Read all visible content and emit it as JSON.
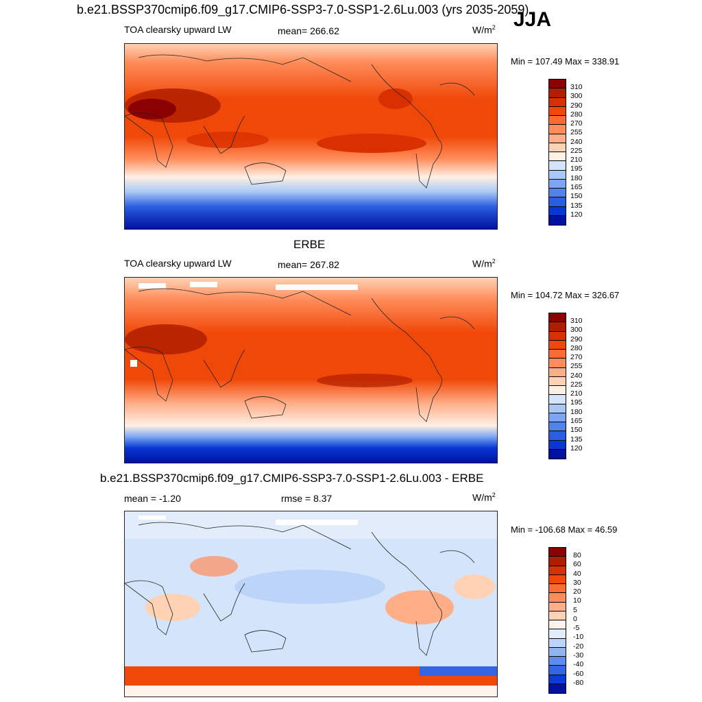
{
  "header": {
    "title": "b.e21.BSSP370cmip6.f09_g17.CMIP6-SSP3-7.0-SSP1-2.6Lu.003 (yrs 2035-2059)",
    "season": "JJA"
  },
  "panels": [
    {
      "id": "model",
      "field": "TOA clearsky upward LW",
      "stat_text": "mean= 266.62",
      "units": "W/m",
      "units_sup": "2",
      "minmax": "Min = 107.49 Max = 338.91"
    },
    {
      "id": "obs",
      "title": "ERBE",
      "field": "TOA clearsky upward LW",
      "stat_text": "mean= 267.82",
      "units": "W/m",
      "units_sup": "2",
      "minmax": "Min = 104.72 Max = 326.67"
    },
    {
      "id": "diff",
      "title": "b.e21.BSSP370cmip6.f09_g17.CMIP6-SSP3-7.0-SSP1-2.6Lu.003 - ERBE",
      "mean_text": "mean =  -1.20",
      "rmse_text": "rmse =   8.37",
      "units": "W/m",
      "units_sup": "2",
      "minmax": "Min = -106.68 Max =  46.59"
    }
  ],
  "colorbars": {
    "absolute": {
      "levels": [
        "310",
        "300",
        "290",
        "280",
        "270",
        "255",
        "240",
        "225",
        "210",
        "195",
        "180",
        "165",
        "150",
        "135",
        "120"
      ],
      "colors": [
        "#8b0000",
        "#b01e00",
        "#d83000",
        "#f04808",
        "#ff6a32",
        "#ff8c5a",
        "#ffae88",
        "#ffd2b4",
        "#fff0e4",
        "#d4e4fa",
        "#a8c8f6",
        "#7ca6f2",
        "#5282ec",
        "#2a5ee0",
        "#0838d4",
        "#0010a0"
      ]
    },
    "difference": {
      "levels": [
        "80",
        "60",
        "40",
        "30",
        "20",
        "10",
        "5",
        "0",
        "-5",
        "-10",
        "-20",
        "-30",
        "-40",
        "-60",
        "-80"
      ],
      "colors": [
        "#8b0000",
        "#b01e00",
        "#d83000",
        "#f04808",
        "#ff6a32",
        "#ff8c5a",
        "#ffae88",
        "#ffd2b4",
        "#fff4ec",
        "#e2ecfb",
        "#bcd4f8",
        "#90b4f4",
        "#5e8cee",
        "#3466e4",
        "#0c3cd8",
        "#00129e"
      ]
    }
  }
}
